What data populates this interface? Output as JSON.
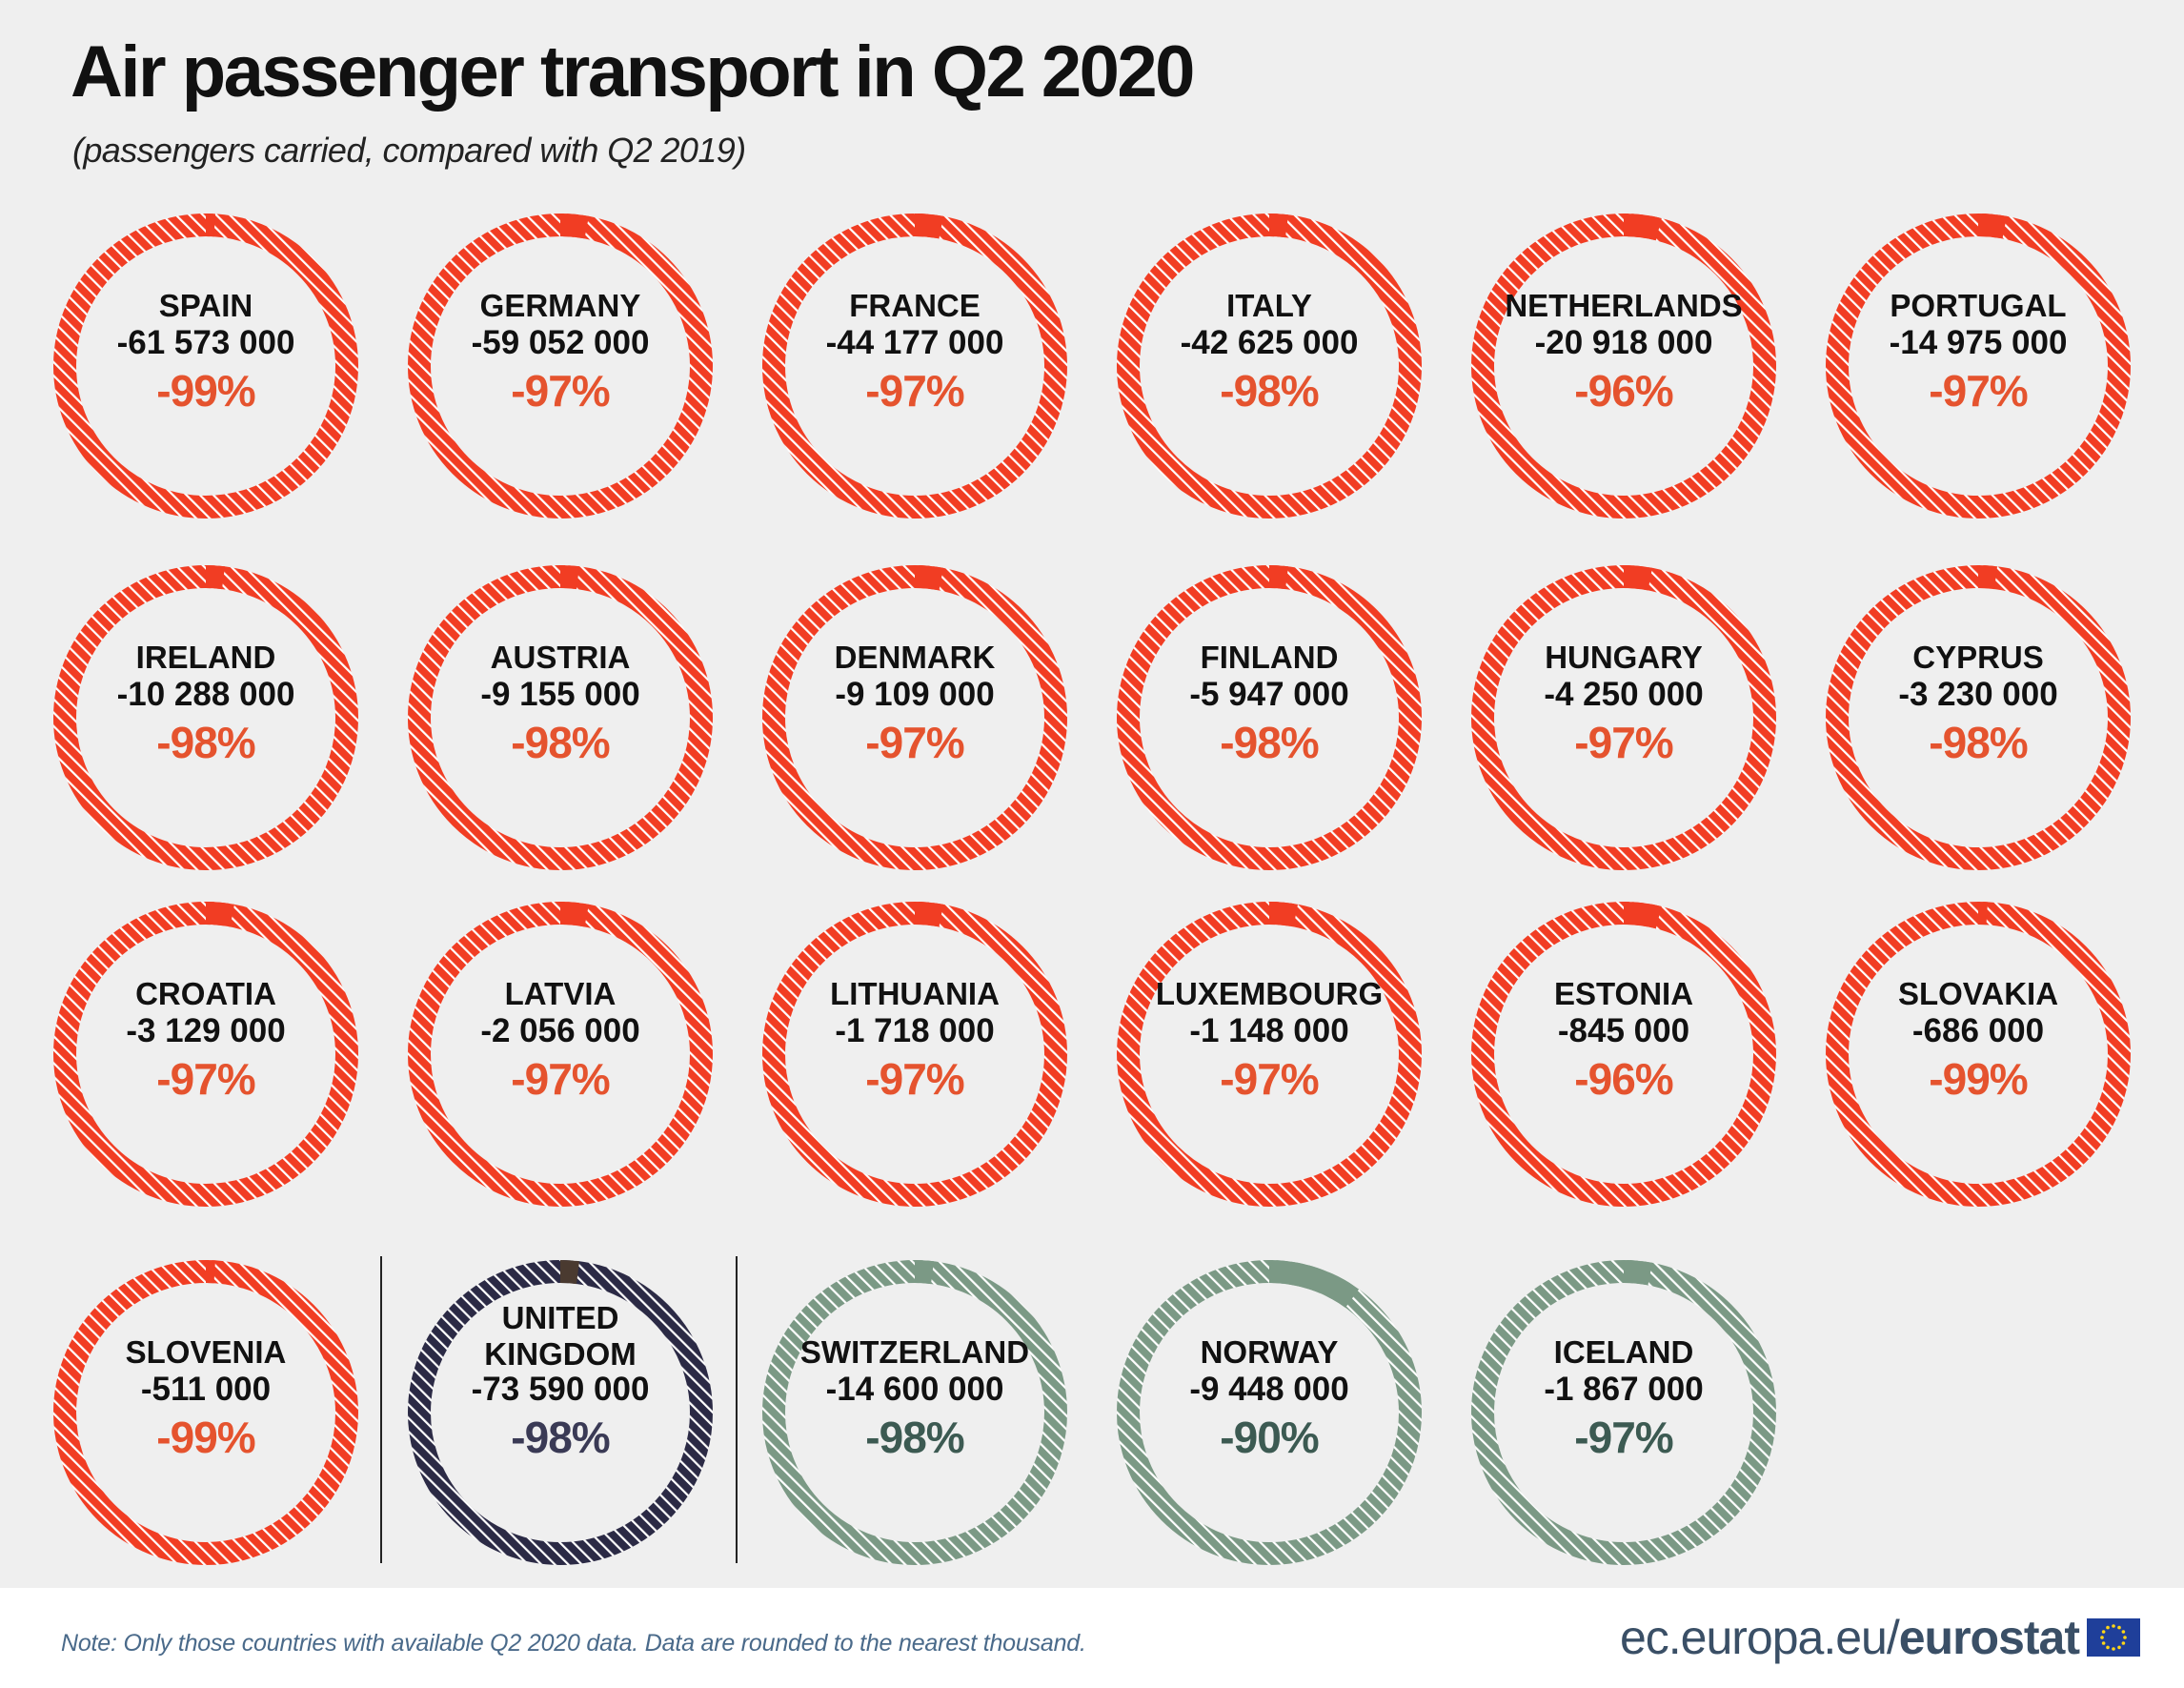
{
  "title": "Air passenger transport in Q2 2020",
  "subtitle": "(passengers carried, compared with Q2 2019)",
  "note": "Note: Only those countries with available Q2 2020 data. Data are rounded to the nearest thousand.",
  "brand": {
    "url": "ec.europa.eu/",
    "name": "eurostat",
    "logo_icon": "eu-flag-icon"
  },
  "colors": {
    "eu": "#f13d23",
    "eu_text": "#e5532e",
    "uk": "#2b2a45",
    "uk_text": "#3a3a55",
    "efta": "#7b9985",
    "efta_text": "#3c5a52",
    "hatch": "#ffffff",
    "label": "#111111",
    "divider": "#222222",
    "remain_dark": "#4a3a30"
  },
  "chart_data": {
    "type": "donut-grid",
    "measure": "passengers carried, change compared with Q2 2019",
    "items": [
      {
        "country": "SPAIN",
        "change": "-61 573 000",
        "pct": "-99%",
        "pct_value": -99,
        "group": "eu"
      },
      {
        "country": "GERMANY",
        "change": "-59 052 000",
        "pct": "-97%",
        "pct_value": -97,
        "group": "eu"
      },
      {
        "country": "FRANCE",
        "change": "-44 177 000",
        "pct": "-97%",
        "pct_value": -97,
        "group": "eu"
      },
      {
        "country": "ITALY",
        "change": "-42 625 000",
        "pct": "-98%",
        "pct_value": -98,
        "group": "eu"
      },
      {
        "country": "NETHERLANDS",
        "change": "-20 918 000",
        "pct": "-96%",
        "pct_value": -96,
        "group": "eu"
      },
      {
        "country": "PORTUGAL",
        "change": "-14 975 000",
        "pct": "-97%",
        "pct_value": -97,
        "group": "eu"
      },
      {
        "country": "IRELAND",
        "change": "-10 288 000",
        "pct": "-98%",
        "pct_value": -98,
        "group": "eu"
      },
      {
        "country": "AUSTRIA",
        "change": "-9 155 000",
        "pct": "-98%",
        "pct_value": -98,
        "group": "eu"
      },
      {
        "country": "DENMARK",
        "change": "-9 109 000",
        "pct": "-97%",
        "pct_value": -97,
        "group": "eu"
      },
      {
        "country": "FINLAND",
        "change": "-5 947 000",
        "pct": "-98%",
        "pct_value": -98,
        "group": "eu"
      },
      {
        "country": "HUNGARY",
        "change": "-4 250 000",
        "pct": "-97%",
        "pct_value": -97,
        "group": "eu"
      },
      {
        "country": "CYPRUS",
        "change": "-3 230 000",
        "pct": "-98%",
        "pct_value": -98,
        "group": "eu"
      },
      {
        "country": "CROATIA",
        "change": "-3 129 000",
        "pct": "-97%",
        "pct_value": -97,
        "group": "eu"
      },
      {
        "country": "LATVIA",
        "change": "-2 056 000",
        "pct": "-97%",
        "pct_value": -97,
        "group": "eu"
      },
      {
        "country": "LITHUANIA",
        "change": "-1 718 000",
        "pct": "-97%",
        "pct_value": -97,
        "group": "eu"
      },
      {
        "country": "LUXEMBOURG",
        "change": "-1 148 000",
        "pct": "-97%",
        "pct_value": -97,
        "group": "eu"
      },
      {
        "country": "ESTONIA",
        "change": "-845 000",
        "pct": "-96%",
        "pct_value": -96,
        "group": "eu"
      },
      {
        "country": "SLOVAKIA",
        "change": "-686 000",
        "pct": "-99%",
        "pct_value": -99,
        "group": "eu"
      },
      {
        "country": "SLOVENIA",
        "change": "-511 000",
        "pct": "-99%",
        "pct_value": -99,
        "group": "eu"
      },
      {
        "country": "UNITED KINGDOM",
        "change": "-73 590 000",
        "pct": "-98%",
        "pct_value": -98,
        "group": "uk"
      },
      {
        "country": "SWITZERLAND",
        "change": "-14 600 000",
        "pct": "-98%",
        "pct_value": -98,
        "group": "efta"
      },
      {
        "country": "NORWAY",
        "change": "-9 448 000",
        "pct": "-90%",
        "pct_value": -90,
        "group": "efta"
      },
      {
        "country": "ICELAND",
        "change": "-1 867 000",
        "pct": "-97%",
        "pct_value": -97,
        "group": "efta"
      }
    ]
  }
}
